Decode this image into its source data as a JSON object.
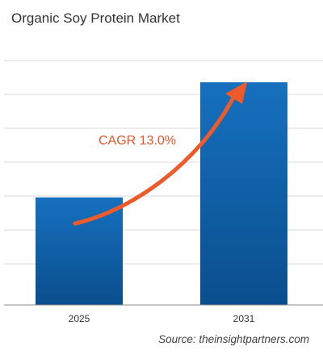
{
  "chart_data": {
    "type": "bar",
    "title": "Organic Soy Protein Market",
    "categories": [
      "2025",
      "2031"
    ],
    "values": [
      1.0,
      2.07
    ],
    "ylim": [
      0,
      2.4
    ],
    "grid": true,
    "annotation": "CAGR 13.0%",
    "source": "Source: theinsightpartners.com"
  },
  "colors": {
    "bar_top": "#1670BE",
    "bar_bottom": "#0A4E8E",
    "arrow": "#EE5B2A",
    "annotation_text": "#E8542A",
    "grid": "#D9D9D9",
    "title_text": "#333333"
  }
}
